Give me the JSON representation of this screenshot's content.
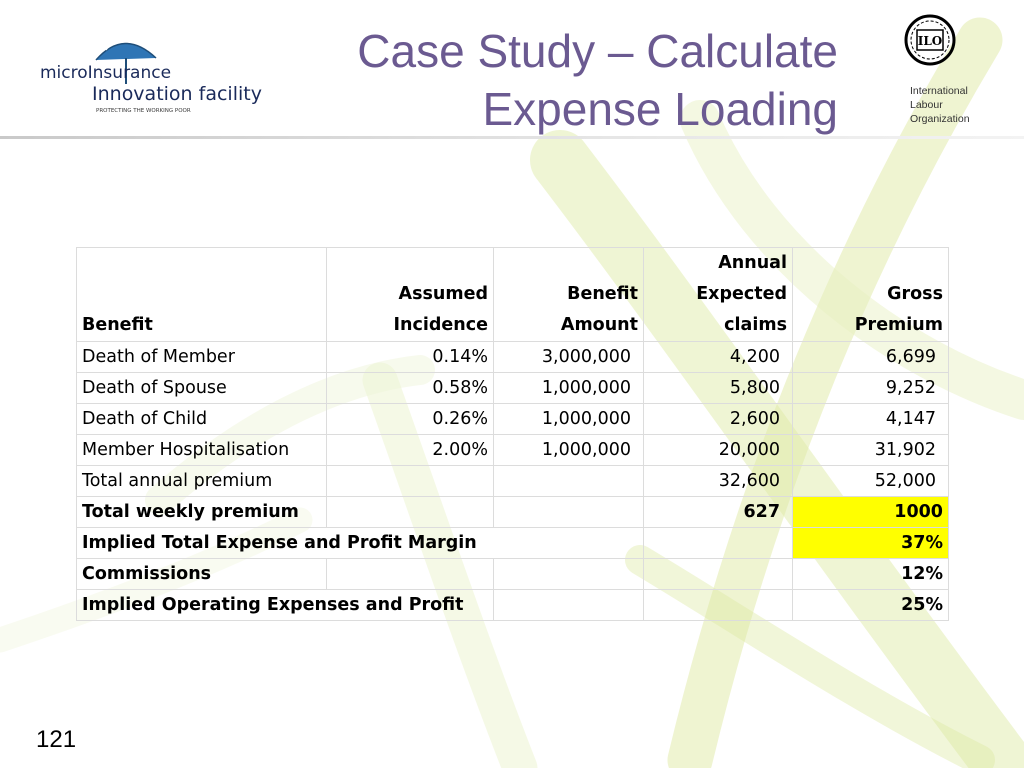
{
  "header": {
    "title_lines": [
      "Case Study – Calculate",
      "Expense Loading"
    ],
    "left_logo": {
      "icon": "umbrella-logo-icon",
      "lines": [
        "microInsurance",
        "Innovation facility",
        "PROTECTING THE WORKING POOR"
      ]
    },
    "right_logo": {
      "icon": "ilo-emblem-icon",
      "lines": [
        "International",
        "Labour",
        "Organization"
      ]
    }
  },
  "table": {
    "headers": [
      [
        "Benefit"
      ],
      [
        "Assumed",
        "Incidence"
      ],
      [
        "Benefit",
        "Amount"
      ],
      [
        "Annual",
        "Expected",
        "claims"
      ],
      [
        "Gross",
        "Premium"
      ]
    ],
    "rows": [
      {
        "benefit": "Death of Member",
        "incidence": "0.14%",
        "amount": "3,000,000",
        "claims": "4,200",
        "premium": "6,699"
      },
      {
        "benefit": "Death of Spouse",
        "incidence": "0.58%",
        "amount": "1,000,000",
        "claims": "5,800",
        "premium": "9,252"
      },
      {
        "benefit": "Death of Child",
        "incidence": "0.26%",
        "amount": "1,000,000",
        "claims": "2,600",
        "premium": "4,147"
      },
      {
        "benefit": "Member Hospitalisation",
        "incidence": "2.00%",
        "amount": "1,000,000",
        "claims": "20,000",
        "premium": "31,902"
      },
      {
        "benefit": "Total annual premium",
        "incidence": "",
        "amount": "",
        "claims": "32,600",
        "premium": "52,000"
      },
      {
        "benefit": "Total weekly premium",
        "incidence": "",
        "amount": "",
        "claims": "627",
        "premium": "1000"
      }
    ],
    "summary": [
      {
        "label": "Implied Total Expense and Profit Margin",
        "value": "37%"
      },
      {
        "label": "Commissions",
        "value": "12%"
      },
      {
        "label": "Implied Operating Expenses and Profit",
        "value": "25%"
      }
    ],
    "highlight_color": "#ffff00"
  },
  "footer": {
    "slide_number": "121"
  },
  "colors": {
    "title": "#6b5a91",
    "background_swirl": "#d4e48a"
  }
}
